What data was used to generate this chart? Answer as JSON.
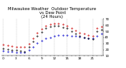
{
  "title": "Milwaukee Weather  Outdoor Temperature\nvs Dew Point\n(24 Hours)",
  "bg_color": "#ffffff",
  "grid_color": "#888888",
  "temp_data": [
    [
      0,
      28
    ],
    [
      1,
      27
    ],
    [
      2,
      26
    ],
    [
      3,
      25
    ],
    [
      4,
      24
    ],
    [
      5,
      24
    ],
    [
      6,
      30
    ],
    [
      7,
      38
    ],
    [
      8,
      47
    ],
    [
      9,
      54
    ],
    [
      10,
      59
    ],
    [
      11,
      62
    ],
    [
      12,
      63
    ],
    [
      13,
      63
    ],
    [
      14,
      61
    ],
    [
      15,
      59
    ],
    [
      16,
      55
    ],
    [
      17,
      51
    ],
    [
      18,
      47
    ],
    [
      19,
      46
    ],
    [
      20,
      44
    ],
    [
      21,
      43
    ],
    [
      22,
      55
    ],
    [
      23,
      58
    ]
  ],
  "dew_data": [
    [
      0,
      18
    ],
    [
      1,
      17
    ],
    [
      2,
      17
    ],
    [
      3,
      16
    ],
    [
      4,
      16
    ],
    [
      5,
      15
    ],
    [
      6,
      19
    ],
    [
      7,
      24
    ],
    [
      8,
      31
    ],
    [
      9,
      35
    ],
    [
      10,
      38
    ],
    [
      11,
      40
    ],
    [
      12,
      42
    ],
    [
      13,
      44
    ],
    [
      14,
      44
    ],
    [
      15,
      44
    ],
    [
      16,
      43
    ],
    [
      17,
      42
    ],
    [
      18,
      41
    ],
    [
      19,
      40
    ],
    [
      20,
      39
    ],
    [
      21,
      38
    ],
    [
      22,
      43
    ],
    [
      23,
      46
    ]
  ],
  "apparent_data": [
    [
      0,
      22
    ],
    [
      1,
      21
    ],
    [
      2,
      20
    ],
    [
      3,
      19
    ],
    [
      4,
      18
    ],
    [
      5,
      17
    ],
    [
      6,
      24
    ],
    [
      7,
      33
    ],
    [
      8,
      42
    ],
    [
      9,
      49
    ],
    [
      10,
      55
    ],
    [
      11,
      58
    ],
    [
      12,
      59
    ],
    [
      13,
      59
    ],
    [
      14,
      57
    ],
    [
      15,
      55
    ],
    [
      16,
      50
    ],
    [
      17,
      46
    ],
    [
      18,
      42
    ],
    [
      19,
      40
    ],
    [
      20,
      38
    ],
    [
      21,
      37
    ],
    [
      22,
      50
    ],
    [
      23,
      53
    ]
  ],
  "temp_color": "#cc0000",
  "dew_color": "#0000cc",
  "apparent_color": "#000000",
  "ylim": [
    10,
    70
  ],
  "yticks": [
    10,
    20,
    30,
    40,
    50,
    60,
    70
  ],
  "ytick_labels": [
    "10",
    "20",
    "30",
    "40",
    "50",
    "60",
    "70"
  ],
  "dashed_vlines": [
    0,
    3,
    6,
    9,
    12,
    15,
    18,
    21,
    23
  ],
  "title_fontsize": 3.8,
  "tick_fontsize": 3.0,
  "marker_size": 0.9,
  "linewidth_spine": 0.3
}
